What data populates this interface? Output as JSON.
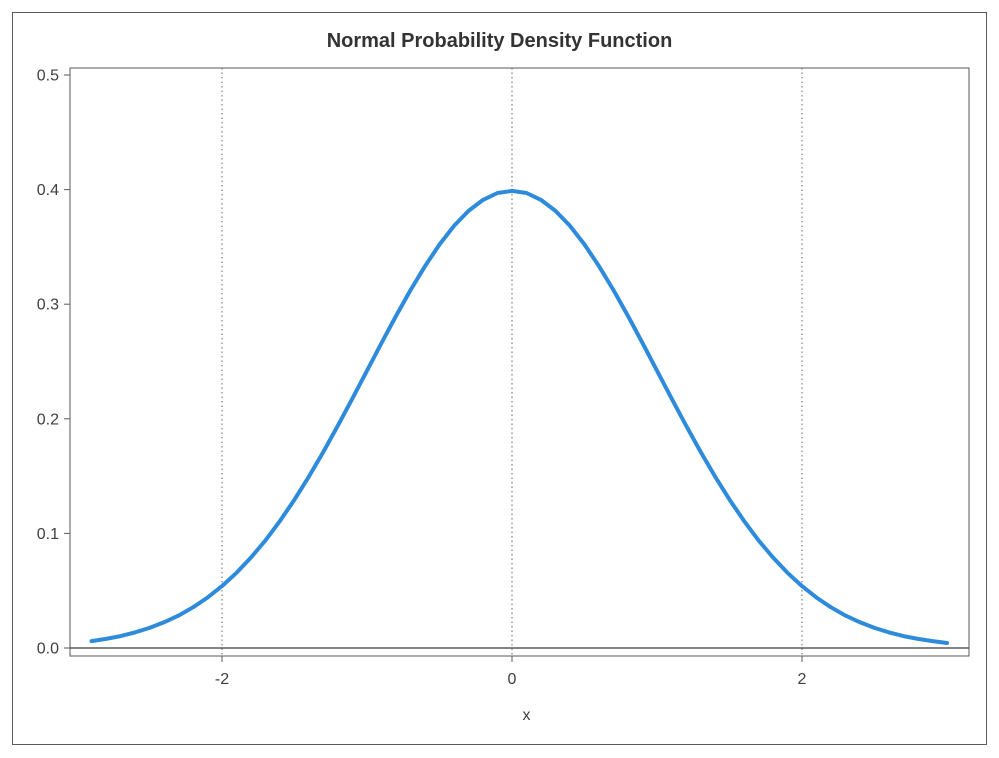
{
  "chart_data": {
    "type": "line",
    "title": "Normal Probability Density Function",
    "xlabel": "x",
    "ylabel": "",
    "xlim": [
      -3,
      3.1
    ],
    "ylim": [
      0,
      0.5
    ],
    "x_ticks": [
      -2,
      0,
      2
    ],
    "x_tick_labels": [
      "-2",
      "0",
      "2"
    ],
    "y_ticks": [
      0,
      0.1,
      0.2,
      0.3,
      0.4,
      0.5
    ],
    "y_tick_labels": [
      "0.0",
      "0.1",
      "0.2",
      "0.3",
      "0.4",
      "0.5"
    ],
    "vertical_reference_lines": [
      -2,
      0,
      2
    ],
    "grid": false,
    "legend": "none",
    "series": [
      {
        "color": "#2e8bdc",
        "x": [
          -2.9,
          -2.8,
          -2.7,
          -2.6,
          -2.5,
          -2.4,
          -2.3,
          -2.2,
          -2.1,
          -2.0,
          -1.9,
          -1.8,
          -1.7,
          -1.6,
          -1.5,
          -1.4,
          -1.3,
          -1.2,
          -1.1,
          -1.0,
          -0.9,
          -0.8,
          -0.7,
          -0.6,
          -0.5,
          -0.4,
          -0.3,
          -0.2,
          -0.1,
          0.0,
          0.1,
          0.2,
          0.3,
          0.4,
          0.5,
          0.6,
          0.7,
          0.8,
          0.9,
          1.0,
          1.1,
          1.2,
          1.3,
          1.4,
          1.5,
          1.6,
          1.7,
          1.8,
          1.9,
          2.0,
          2.1,
          2.2,
          2.3,
          2.4,
          2.5,
          2.6,
          2.7,
          2.8,
          2.9,
          3.0
        ],
        "values": [
          0.006,
          0.0079,
          0.0104,
          0.0136,
          0.0175,
          0.0224,
          0.0283,
          0.0355,
          0.044,
          0.054,
          0.0656,
          0.079,
          0.094,
          0.1109,
          0.1295,
          0.1497,
          0.1714,
          0.1942,
          0.2179,
          0.242,
          0.2661,
          0.2897,
          0.3123,
          0.3332,
          0.3521,
          0.3683,
          0.3814,
          0.391,
          0.397,
          0.3989,
          0.397,
          0.391,
          0.3814,
          0.3683,
          0.3521,
          0.3332,
          0.3123,
          0.2897,
          0.2661,
          0.242,
          0.2179,
          0.1942,
          0.1714,
          0.1497,
          0.1295,
          0.1109,
          0.094,
          0.079,
          0.0656,
          0.054,
          0.044,
          0.0355,
          0.0283,
          0.0224,
          0.0175,
          0.0136,
          0.0104,
          0.0079,
          0.006,
          0.0044
        ]
      }
    ]
  }
}
